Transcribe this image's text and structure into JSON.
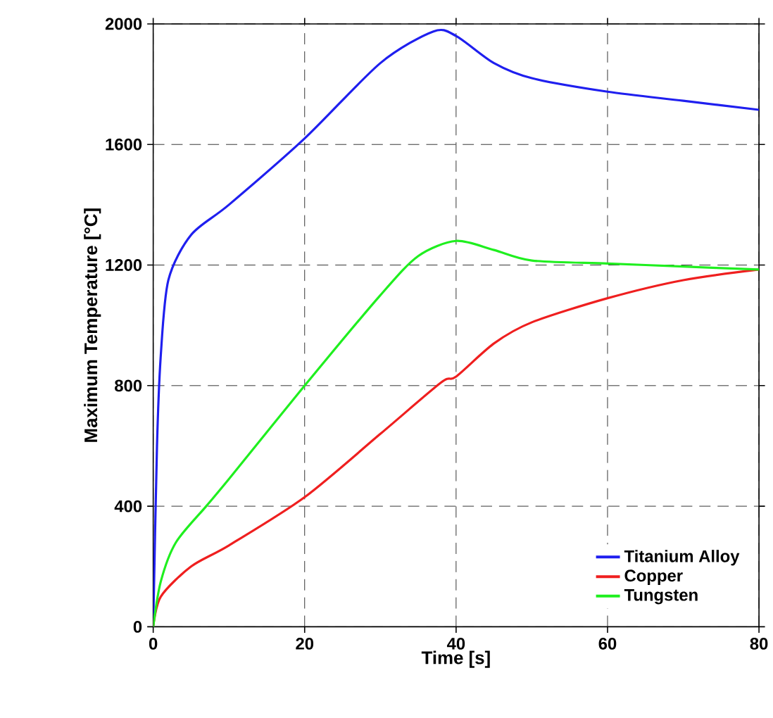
{
  "chart_data": {
    "type": "line",
    "xlabel": "Time [s]",
    "ylabel": "Maximum Temperature [°C]",
    "xlim": [
      0,
      80
    ],
    "ylim": [
      0,
      2000
    ],
    "xticks": [
      0,
      20,
      40,
      60,
      80
    ],
    "yticks": [
      0,
      400,
      800,
      1200,
      1600,
      2000
    ],
    "grid": true,
    "legend": "bottom right",
    "line_style": "solid",
    "marker": "none",
    "series": [
      {
        "name": "Titanium Alloy",
        "color": "#1f1fef",
        "x": [
          0,
          0.5,
          1,
          2,
          5,
          10,
          20,
          30,
          37,
          40,
          45,
          50,
          60,
          70,
          80
        ],
        "values": [
          0,
          600,
          900,
          1150,
          1300,
          1400,
          1620,
          1870,
          1975,
          1960,
          1870,
          1820,
          1775,
          1745,
          1715
        ]
      },
      {
        "name": "Copper",
        "color": "#ef1f1f",
        "x": [
          0,
          1,
          5,
          10,
          20,
          30,
          38,
          40,
          45,
          50,
          60,
          70,
          80
        ],
        "values": [
          0,
          100,
          200,
          270,
          430,
          640,
          810,
          830,
          940,
          1010,
          1090,
          1150,
          1185
        ]
      },
      {
        "name": "Tungsten",
        "color": "#1fef1f",
        "x": [
          0,
          1,
          3,
          7,
          10,
          20,
          30,
          35,
          40,
          45,
          50,
          60,
          70,
          80
        ],
        "values": [
          0,
          150,
          280,
          400,
          490,
          800,
          1100,
          1230,
          1280,
          1250,
          1215,
          1205,
          1195,
          1185
        ]
      }
    ]
  }
}
